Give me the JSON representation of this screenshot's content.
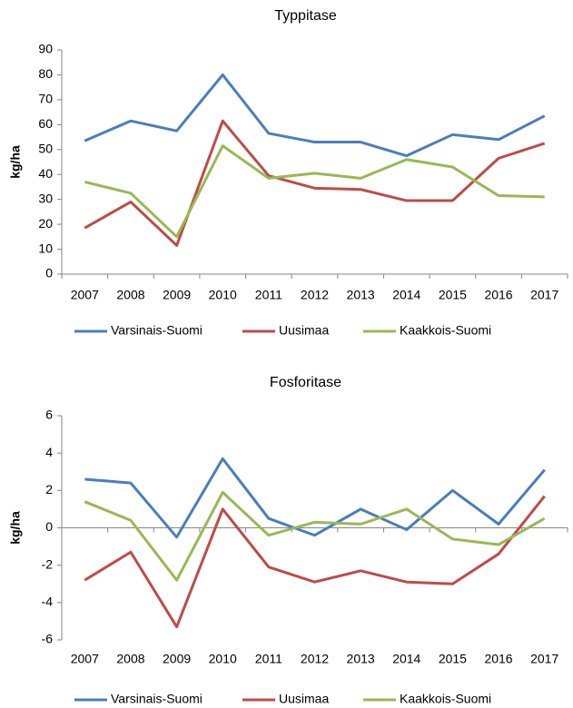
{
  "chart_data": [
    {
      "type": "line",
      "title": "Typpitase",
      "y_label": "kg/ha",
      "categories": [
        "2007",
        "2008",
        "2009",
        "2010",
        "2011",
        "2012",
        "2013",
        "2014",
        "2015",
        "2016",
        "2017"
      ],
      "series": [
        {
          "name": "Varsinais-Suomi",
          "color": "#4a7ebb",
          "values": [
            53.5,
            61.5,
            57.5,
            80,
            56.5,
            53,
            53,
            47.5,
            56,
            54,
            63.5
          ]
        },
        {
          "name": "Uusimaa",
          "color": "#be4b48",
          "values": [
            18.5,
            29,
            11.5,
            61.5,
            39.5,
            34.5,
            34,
            29.5,
            29.5,
            46.5,
            52.5
          ]
        },
        {
          "name": "Kaakkois-Suomi",
          "color": "#98b954",
          "values": [
            37,
            32.5,
            15,
            51.5,
            38.5,
            40.5,
            38.5,
            46,
            43,
            31.5,
            31
          ]
        }
      ],
      "ylim": [
        0,
        90
      ],
      "yticks": [
        0,
        10,
        20,
        30,
        40,
        50,
        60,
        70,
        80,
        90
      ],
      "grid": false,
      "legend": "bottom"
    },
    {
      "type": "line",
      "title": "Fosforitase",
      "y_label": "kg/ha",
      "categories": [
        "2007",
        "2008",
        "2009",
        "2010",
        "2011",
        "2012",
        "2013",
        "2014",
        "2015",
        "2016",
        "2017"
      ],
      "series": [
        {
          "name": "Varsinais-Suomi",
          "color": "#4a7ebb",
          "values": [
            2.6,
            2.4,
            -0.5,
            3.7,
            0.5,
            -0.4,
            1.0,
            -0.1,
            2.0,
            0.2,
            3.1
          ]
        },
        {
          "name": "Uusimaa",
          "color": "#be4b48",
          "values": [
            -2.8,
            -1.3,
            -5.3,
            1.0,
            -2.1,
            -2.9,
            -2.3,
            -2.9,
            -3.0,
            -1.4,
            1.7
          ]
        },
        {
          "name": "Kaakkois-Suomi",
          "color": "#98b954",
          "values": [
            1.4,
            0.4,
            -2.8,
            1.9,
            -0.4,
            0.3,
            0.2,
            1.0,
            -0.6,
            -0.9,
            0.5
          ]
        }
      ],
      "ylim": [
        -6,
        6
      ],
      "yticks": [
        -6,
        -4,
        -2,
        0,
        2,
        4,
        6
      ],
      "grid": false,
      "legend": "bottom"
    }
  ]
}
